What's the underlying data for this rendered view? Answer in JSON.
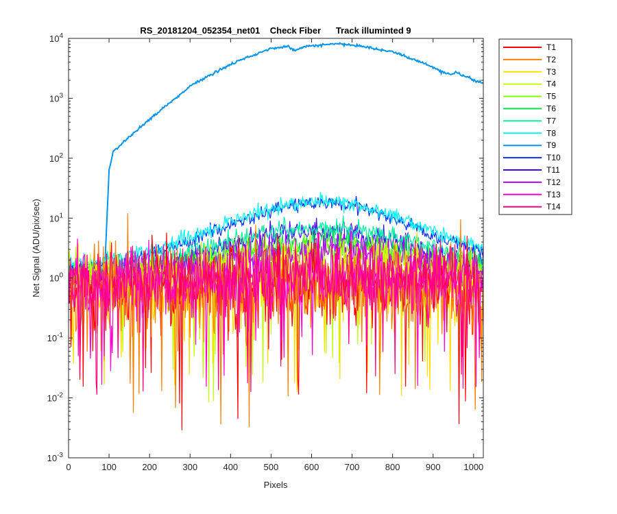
{
  "chart_data": {
    "type": "line",
    "title": "RS_20181204_052354_net01    Check Fiber      Track illuminted 9",
    "xlabel": "Pixels",
    "ylabel": "Net Signal (ADU/pix/sec)",
    "xlim": [
      0,
      1024
    ],
    "ylim": [
      0.001,
      10000
    ],
    "yscale": "log",
    "xticks": [
      "0",
      "100",
      "200",
      "300",
      "400",
      "500",
      "600",
      "700",
      "800",
      "900",
      "1000"
    ],
    "yticks": [
      "10-3",
      "10-2",
      "10-1",
      "100",
      "101",
      "102",
      "103",
      "104"
    ],
    "grid": false,
    "legend_position": "outside-right",
    "series": [
      {
        "name": "T1",
        "color": "#ff0000",
        "profile": "noise",
        "level": 0.55,
        "noise": 0.35
      },
      {
        "name": "T2",
        "color": "#ff7f00",
        "profile": "noise",
        "level": 0.55,
        "noise": 0.35
      },
      {
        "name": "T3",
        "color": "#ffdd00",
        "profile": "noise",
        "level": 0.6,
        "noise": 0.3
      },
      {
        "name": "T4",
        "color": "#bfff00",
        "profile": "noise",
        "level": 0.9,
        "noise": 0.25
      },
      {
        "name": "T5",
        "color": "#7fff00",
        "profile": "hump",
        "level": 1.0,
        "peak": 3.0,
        "noise": 0.12
      },
      {
        "name": "T6",
        "color": "#00e040",
        "profile": "hump",
        "level": 1.0,
        "peak": 4.0,
        "noise": 0.1
      },
      {
        "name": "T7",
        "color": "#00f0a0",
        "profile": "hump",
        "level": 1.2,
        "peak": 7.0,
        "noise": 0.08
      },
      {
        "name": "T8",
        "color": "#00f5f5",
        "profile": "hump",
        "level": 1.5,
        "peak": 19.0,
        "noise": 0.06
      },
      {
        "name": "T9",
        "color": "#0095ee",
        "profile": "main",
        "level": 1.5,
        "peak": 8000,
        "noise": 0.01
      },
      {
        "name": "T10",
        "color": "#0030ff",
        "profile": "hump",
        "level": 1.2,
        "peak": 18.0,
        "noise": 0.06
      },
      {
        "name": "T11",
        "color": "#4000ff",
        "profile": "hump",
        "level": 1.0,
        "peak": 6.0,
        "noise": 0.09
      },
      {
        "name": "T12",
        "color": "#b000ff",
        "profile": "hump",
        "level": 0.9,
        "peak": 2.8,
        "noise": 0.15
      },
      {
        "name": "T13",
        "color": "#ff00d0",
        "profile": "noise",
        "level": 0.7,
        "noise": 0.3
      },
      {
        "name": "T14",
        "color": "#ff0080",
        "profile": "noise",
        "level": 0.8,
        "noise": 0.28
      }
    ]
  }
}
